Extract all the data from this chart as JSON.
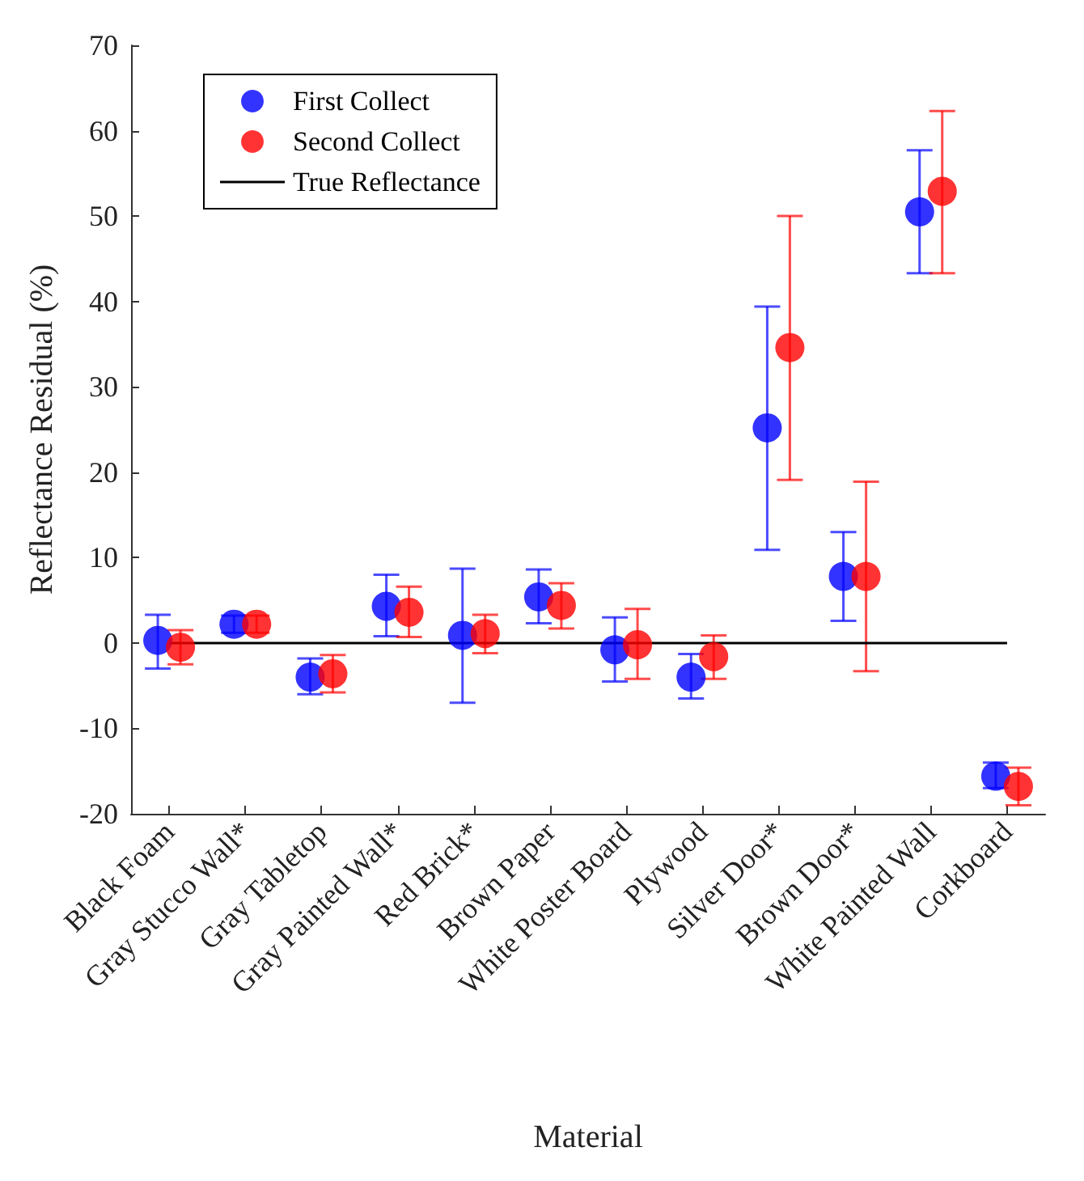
{
  "chart_data": {
    "type": "scatter",
    "xlabel": "Material",
    "ylabel": "Reflectance Residual (%)",
    "categories": [
      "Black Foam",
      "Gray Stucco Wall*",
      "Gray Tabletop",
      "Gray Painted Wall*",
      "Red Brick*",
      "Brown Paper",
      "White Poster Board",
      "Plywood",
      "Silver Door*",
      "Brown Door*",
      "White Painted Wall",
      "Corkboard"
    ],
    "series": [
      {
        "name": "First Collect",
        "color": "#0000ff",
        "values": [
          0.3,
          2.2,
          -4,
          4.3,
          0.9,
          5.4,
          -0.8,
          -4,
          25.2,
          7.8,
          50.5,
          -15.6
        ],
        "errors": [
          [
            -3,
            3.3
          ],
          [
            1.2,
            3.2
          ],
          [
            -6,
            -1.8
          ],
          [
            0.8,
            8
          ],
          [
            -7,
            8.7
          ],
          [
            2.3,
            8.6
          ],
          [
            -4.5,
            3
          ],
          [
            -6.5,
            -1.3
          ],
          [
            10.9,
            39.4
          ],
          [
            2.6,
            13
          ],
          [
            43.3,
            57.7
          ],
          [
            -17,
            -14
          ]
        ]
      },
      {
        "name": "Second Collect",
        "color": "#ff0000",
        "values": [
          -0.5,
          2.2,
          -3.6,
          3.6,
          1.1,
          4.4,
          -0.2,
          -1.6,
          34.6,
          7.8,
          52.9,
          -16.8
        ],
        "errors": [
          [
            -2.5,
            1.5
          ],
          [
            1.2,
            3.2
          ],
          [
            -5.8,
            -1.4
          ],
          [
            0.7,
            6.6
          ],
          [
            -1.2,
            3.3
          ],
          [
            1.7,
            7
          ],
          [
            -4.2,
            4
          ],
          [
            -4.2,
            0.9
          ],
          [
            19.1,
            50
          ],
          [
            -3.3,
            18.9
          ],
          [
            43.3,
            62.3
          ],
          [
            -19,
            -14.6
          ]
        ]
      },
      {
        "name": "True Reflectance",
        "type": "line",
        "color": "#000000",
        "marker": "none",
        "values": [
          0,
          0,
          0,
          0,
          0,
          0,
          0,
          0,
          0,
          0,
          0,
          0
        ]
      }
    ],
    "ylim": [
      -20,
      70
    ],
    "yticks": [
      -20,
      -10,
      0,
      10,
      20,
      30,
      40,
      50,
      60,
      70
    ],
    "marker": "circle",
    "grid": false,
    "legend": "top left"
  }
}
